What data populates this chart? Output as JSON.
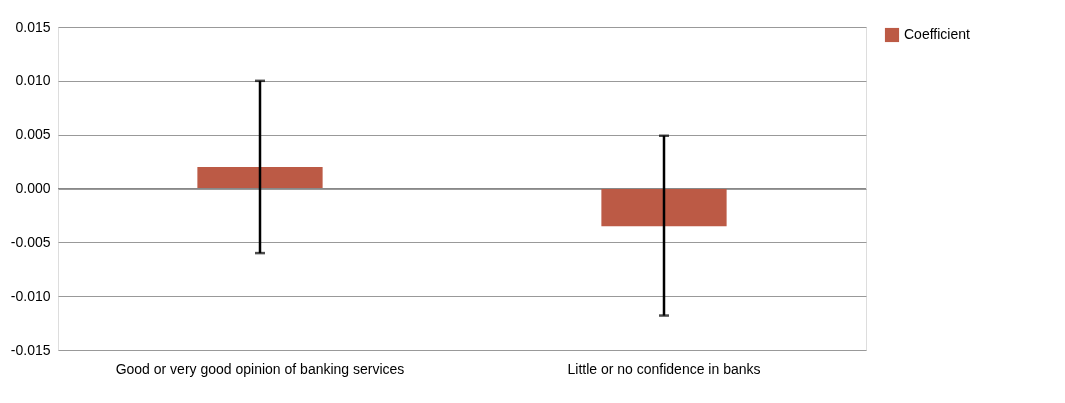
{
  "chart_data": {
    "type": "bar",
    "categories": [
      "Good or very good opinion of banking services",
      "Little or no confidence in banks"
    ],
    "series": [
      {
        "name": "Coefficient",
        "color": "#bc5a45",
        "values": [
          0.002,
          -0.0035
        ],
        "errors": [
          [
            -0.006,
            0.01
          ],
          [
            -0.0118,
            0.0049
          ]
        ]
      }
    ],
    "ylim": [
      -0.015,
      0.015
    ],
    "yticks": [
      {
        "value": -0.015,
        "label": "-0.015"
      },
      {
        "value": -0.01,
        "label": "-0.010"
      },
      {
        "value": -0.005,
        "label": "-0.005"
      },
      {
        "value": 0,
        "label": "0.000"
      },
      {
        "value": 0.005,
        "label": "0.005"
      },
      {
        "value": 0.01,
        "label": "0.010"
      },
      {
        "value": 0.015,
        "label": "0.015"
      }
    ],
    "grid": "y",
    "legend": "top right"
  }
}
